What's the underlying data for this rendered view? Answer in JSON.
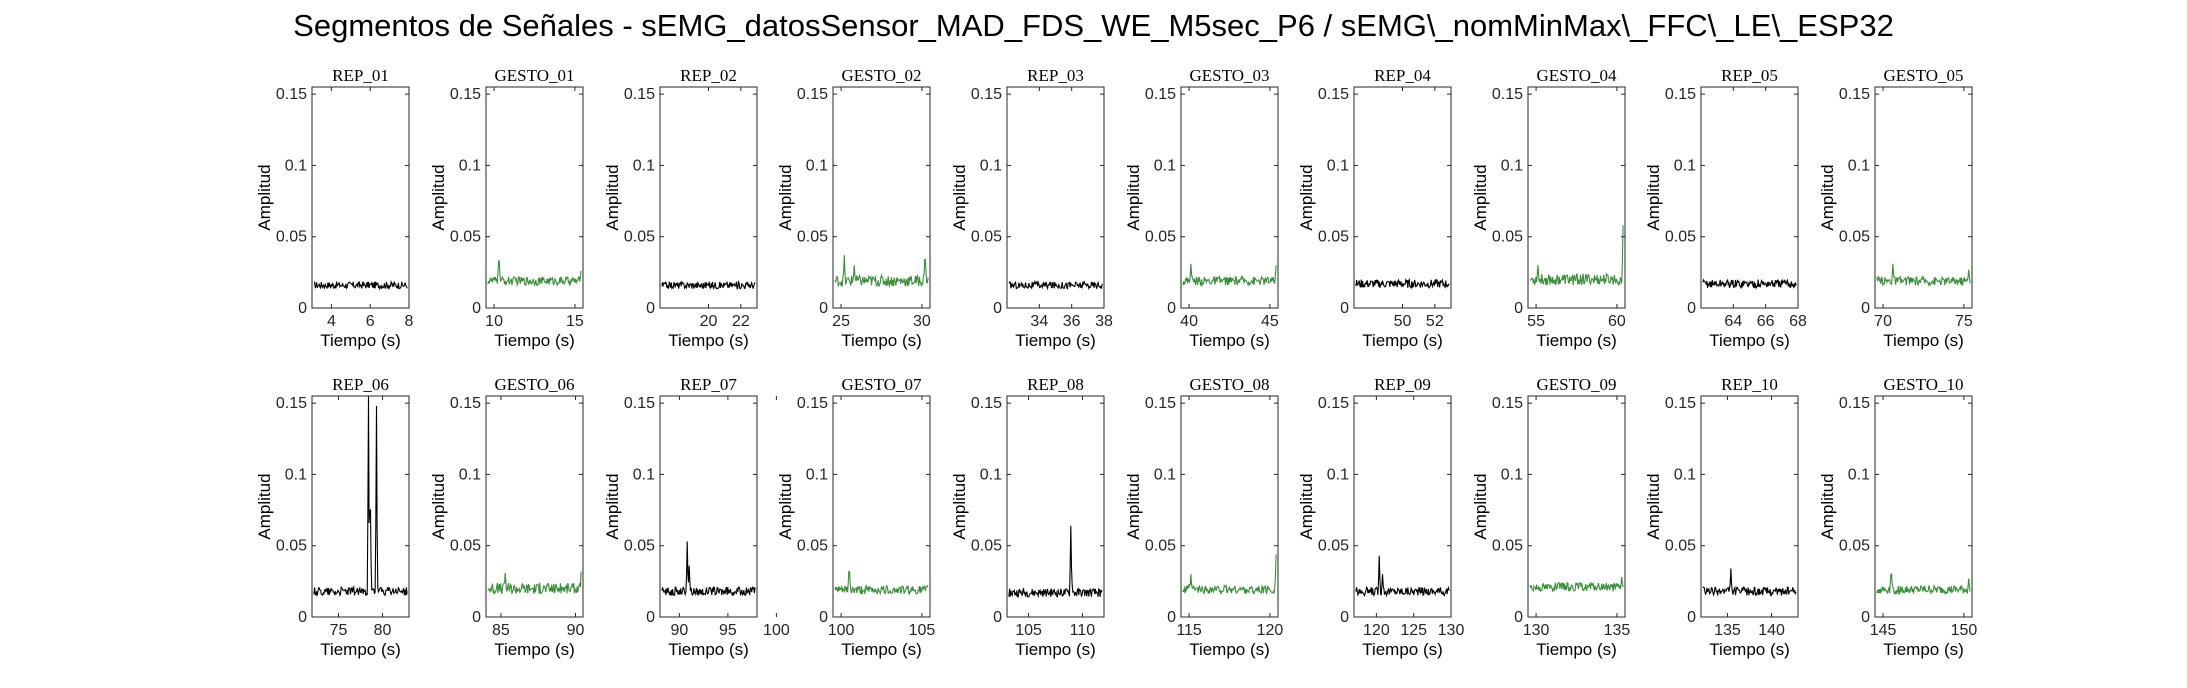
{
  "figure": {
    "title": "Segmentos de Señales - sEMG_datosSensor_MAD_FDS_WE_M5sec_P6 / sEMG\\_nomMinMax\\_FFC\\_LE\\_ESP32"
  },
  "colors": {
    "rep": "#000000",
    "gesto": "#3c8d3c",
    "axis": "#262626",
    "background": "#ffffff"
  },
  "chart_data": [
    {
      "type": "line",
      "title": "REP_01",
      "xlabel": "Tiempo (s)",
      "ylabel": "Amplitud",
      "xlim": [
        3,
        8
      ],
      "ylim": [
        0,
        0.155
      ],
      "xticks": [
        4,
        6,
        8
      ],
      "yticks": [
        0,
        0.05,
        0.1,
        0.15
      ],
      "series": [
        {
          "color": "#000000",
          "baseline": 0.016,
          "noise": 0.0025,
          "spikes": []
        }
      ]
    },
    {
      "type": "line",
      "title": "GESTO_01",
      "xlabel": "Tiempo (s)",
      "ylabel": "Amplitud",
      "xlim": [
        9.5,
        15.5
      ],
      "ylim": [
        0,
        0.155
      ],
      "xticks": [
        10,
        15
      ],
      "yticks": [
        0,
        0.05,
        0.1,
        0.15
      ],
      "series": [
        {
          "color": "#3c8d3c",
          "baseline": 0.019,
          "noise": 0.003,
          "spikes": [
            {
              "x": 10.3,
              "y": 0.033
            },
            {
              "x": 15.4,
              "y": 0.026
            }
          ]
        }
      ]
    },
    {
      "type": "line",
      "title": "REP_02",
      "xlabel": "Tiempo (s)",
      "ylabel": "Amplitud",
      "xlim": [
        17,
        23
      ],
      "ylim": [
        0,
        0.155
      ],
      "xticks": [
        20,
        22
      ],
      "yticks": [
        0,
        0.05,
        0.1,
        0.15
      ],
      "series": [
        {
          "color": "#000000",
          "baseline": 0.016,
          "noise": 0.0025,
          "spikes": []
        }
      ]
    },
    {
      "type": "line",
      "title": "GESTO_02",
      "xlabel": "Tiempo (s)",
      "ylabel": "Amplitud",
      "xlim": [
        24.5,
        30.5
      ],
      "ylim": [
        0,
        0.155
      ],
      "xticks": [
        25,
        30
      ],
      "yticks": [
        0,
        0.05,
        0.1,
        0.15
      ],
      "series": [
        {
          "color": "#3c8d3c",
          "baseline": 0.019,
          "noise": 0.004,
          "spikes": [
            {
              "x": 25.2,
              "y": 0.037
            },
            {
              "x": 25.8,
              "y": 0.03
            },
            {
              "x": 30.2,
              "y": 0.034
            }
          ]
        }
      ]
    },
    {
      "type": "line",
      "title": "REP_03",
      "xlabel": "Tiempo (s)",
      "ylabel": "Amplitud",
      "xlim": [
        32,
        38
      ],
      "ylim": [
        0,
        0.155
      ],
      "xticks": [
        34,
        36,
        38
      ],
      "yticks": [
        0,
        0.05,
        0.1,
        0.15
      ],
      "series": [
        {
          "color": "#000000",
          "baseline": 0.016,
          "noise": 0.0025,
          "spikes": []
        }
      ]
    },
    {
      "type": "line",
      "title": "GESTO_03",
      "xlabel": "Tiempo (s)",
      "ylabel": "Amplitud",
      "xlim": [
        39.5,
        45.5
      ],
      "ylim": [
        0,
        0.155
      ],
      "xticks": [
        40,
        45
      ],
      "yticks": [
        0,
        0.05,
        0.1,
        0.15
      ],
      "series": [
        {
          "color": "#3c8d3c",
          "baseline": 0.019,
          "noise": 0.003,
          "spikes": [
            {
              "x": 40.1,
              "y": 0.031
            },
            {
              "x": 45.4,
              "y": 0.03
            }
          ]
        }
      ]
    },
    {
      "type": "line",
      "title": "REP_04",
      "xlabel": "Tiempo (s)",
      "ylabel": "Amplitud",
      "xlim": [
        47,
        53
      ],
      "ylim": [
        0,
        0.155
      ],
      "xticks": [
        50,
        52
      ],
      "yticks": [
        0,
        0.05,
        0.1,
        0.15
      ],
      "series": [
        {
          "color": "#000000",
          "baseline": 0.017,
          "noise": 0.003,
          "spikes": []
        }
      ]
    },
    {
      "type": "line",
      "title": "GESTO_04",
      "xlabel": "Tiempo (s)",
      "ylabel": "Amplitud",
      "xlim": [
        54.5,
        60.5
      ],
      "ylim": [
        0,
        0.155
      ],
      "xticks": [
        55,
        60
      ],
      "yticks": [
        0,
        0.05,
        0.1,
        0.15
      ],
      "series": [
        {
          "color": "#3c8d3c",
          "baseline": 0.02,
          "noise": 0.004,
          "spikes": [
            {
              "x": 55.1,
              "y": 0.03
            },
            {
              "x": 60.4,
              "y": 0.058
            }
          ]
        }
      ]
    },
    {
      "type": "line",
      "title": "REP_05",
      "xlabel": "Tiempo (s)",
      "ylabel": "Amplitud",
      "xlim": [
        62,
        68
      ],
      "ylim": [
        0,
        0.155
      ],
      "xticks": [
        64,
        66,
        68
      ],
      "yticks": [
        0,
        0.05,
        0.1,
        0.15
      ],
      "series": [
        {
          "color": "#000000",
          "baseline": 0.017,
          "noise": 0.003,
          "spikes": []
        }
      ]
    },
    {
      "type": "line",
      "title": "GESTO_05",
      "xlabel": "Tiempo (s)",
      "ylabel": "Amplitud",
      "xlim": [
        69.5,
        75.5
      ],
      "ylim": [
        0,
        0.155
      ],
      "xticks": [
        70,
        75
      ],
      "yticks": [
        0,
        0.05,
        0.1,
        0.15
      ],
      "series": [
        {
          "color": "#3c8d3c",
          "baseline": 0.019,
          "noise": 0.003,
          "spikes": [
            {
              "x": 70.6,
              "y": 0.031
            },
            {
              "x": 75.3,
              "y": 0.027
            }
          ]
        }
      ]
    },
    {
      "type": "line",
      "title": "REP_06",
      "xlabel": "Tiempo (s)",
      "ylabel": "Amplitud",
      "xlim": [
        72,
        83
      ],
      "ylim": [
        0,
        0.155
      ],
      "xticks": [
        75,
        80
      ],
      "yticks": [
        0,
        0.05,
        0.1,
        0.15
      ],
      "series": [
        {
          "color": "#000000",
          "baseline": 0.018,
          "noise": 0.003,
          "spikes": [
            {
              "x": 78.4,
              "y": 0.155
            },
            {
              "x": 78.6,
              "y": 0.075
            },
            {
              "x": 79.3,
              "y": 0.148
            }
          ]
        }
      ]
    },
    {
      "type": "line",
      "title": "GESTO_06",
      "xlabel": "Tiempo (s)",
      "ylabel": "Amplitud",
      "xlim": [
        84,
        90.5
      ],
      "ylim": [
        0,
        0.155
      ],
      "xticks": [
        85,
        90
      ],
      "yticks": [
        0,
        0.05,
        0.1,
        0.15
      ],
      "series": [
        {
          "color": "#3c8d3c",
          "baseline": 0.02,
          "noise": 0.004,
          "spikes": [
            {
              "x": 85.3,
              "y": 0.031
            },
            {
              "x": 90.4,
              "y": 0.054
            }
          ]
        }
      ]
    },
    {
      "type": "line",
      "title": "REP_07",
      "xlabel": "Tiempo (s)",
      "ylabel": "Amplitud",
      "xlim": [
        88,
        98
      ],
      "ylim": [
        0,
        0.155
      ],
      "xticks": [
        90,
        95,
        100
      ],
      "yticks": [
        0,
        0.05,
        0.1,
        0.15
      ],
      "series": [
        {
          "color": "#000000",
          "baseline": 0.018,
          "noise": 0.003,
          "spikes": [
            {
              "x": 90.8,
              "y": 0.053
            },
            {
              "x": 91.0,
              "y": 0.036
            }
          ]
        }
      ]
    },
    {
      "type": "line",
      "title": "GESTO_07",
      "xlabel": "Tiempo (s)",
      "ylabel": "Amplitud",
      "xlim": [
        99.5,
        105.5
      ],
      "ylim": [
        0,
        0.155
      ],
      "xticks": [
        100,
        105
      ],
      "yticks": [
        0,
        0.05,
        0.1,
        0.15
      ],
      "series": [
        {
          "color": "#3c8d3c",
          "baseline": 0.019,
          "noise": 0.003,
          "spikes": [
            {
              "x": 100.5,
              "y": 0.032
            }
          ]
        }
      ]
    },
    {
      "type": "line",
      "title": "REP_08",
      "xlabel": "Tiempo (s)",
      "ylabel": "Amplitud",
      "xlim": [
        103,
        112
      ],
      "ylim": [
        0,
        0.155
      ],
      "xticks": [
        105,
        110
      ],
      "yticks": [
        0,
        0.05,
        0.1,
        0.15
      ],
      "series": [
        {
          "color": "#000000",
          "baseline": 0.017,
          "noise": 0.003,
          "spikes": [
            {
              "x": 108.9,
              "y": 0.064
            },
            {
              "x": 109.0,
              "y": 0.035
            }
          ]
        }
      ]
    },
    {
      "type": "line",
      "title": "GESTO_08",
      "xlabel": "Tiempo (s)",
      "ylabel": "Amplitud",
      "xlim": [
        114.5,
        120.5
      ],
      "ylim": [
        0,
        0.155
      ],
      "xticks": [
        115,
        120
      ],
      "yticks": [
        0,
        0.05,
        0.1,
        0.15
      ],
      "series": [
        {
          "color": "#3c8d3c",
          "baseline": 0.019,
          "noise": 0.003,
          "spikes": [
            {
              "x": 115.1,
              "y": 0.03
            },
            {
              "x": 120.4,
              "y": 0.044
            }
          ]
        }
      ]
    },
    {
      "type": "line",
      "title": "REP_09",
      "xlabel": "Tiempo (s)",
      "ylabel": "Amplitud",
      "xlim": [
        117,
        130
      ],
      "ylim": [
        0,
        0.155
      ],
      "xticks": [
        120,
        125,
        130
      ],
      "yticks": [
        0,
        0.05,
        0.1,
        0.15
      ],
      "series": [
        {
          "color": "#000000",
          "baseline": 0.018,
          "noise": 0.003,
          "spikes": [
            {
              "x": 120.4,
              "y": 0.043
            },
            {
              "x": 120.8,
              "y": 0.03
            }
          ]
        }
      ]
    },
    {
      "type": "line",
      "title": "GESTO_09",
      "xlabel": "Tiempo (s)",
      "ylabel": "Amplitud",
      "xlim": [
        129.5,
        135.5
      ],
      "ylim": [
        0,
        0.155
      ],
      "xticks": [
        130,
        135
      ],
      "yticks": [
        0,
        0.05,
        0.1,
        0.15
      ],
      "series": [
        {
          "color": "#3c8d3c",
          "baseline": 0.021,
          "noise": 0.003,
          "spikes": [
            {
              "x": 135.3,
              "y": 0.028
            }
          ]
        }
      ]
    },
    {
      "type": "line",
      "title": "REP_10",
      "xlabel": "Tiempo (s)",
      "ylabel": "Amplitud",
      "xlim": [
        132,
        143
      ],
      "ylim": [
        0,
        0.155
      ],
      "xticks": [
        135,
        140
      ],
      "yticks": [
        0,
        0.05,
        0.1,
        0.15
      ],
      "series": [
        {
          "color": "#000000",
          "baseline": 0.018,
          "noise": 0.003,
          "spikes": [
            {
              "x": 135.4,
              "y": 0.034
            }
          ]
        }
      ]
    },
    {
      "type": "line",
      "title": "GESTO_10",
      "xlabel": "Tiempo (s)",
      "ylabel": "Amplitud",
      "xlim": [
        144.5,
        150.5
      ],
      "ylim": [
        0,
        0.155
      ],
      "xticks": [
        145,
        150
      ],
      "yticks": [
        0,
        0.05,
        0.1,
        0.15
      ],
      "series": [
        {
          "color": "#3c8d3c",
          "baseline": 0.019,
          "noise": 0.003,
          "spikes": [
            {
              "x": 145.5,
              "y": 0.03
            },
            {
              "x": 150.3,
              "y": 0.027
            }
          ]
        }
      ]
    }
  ]
}
